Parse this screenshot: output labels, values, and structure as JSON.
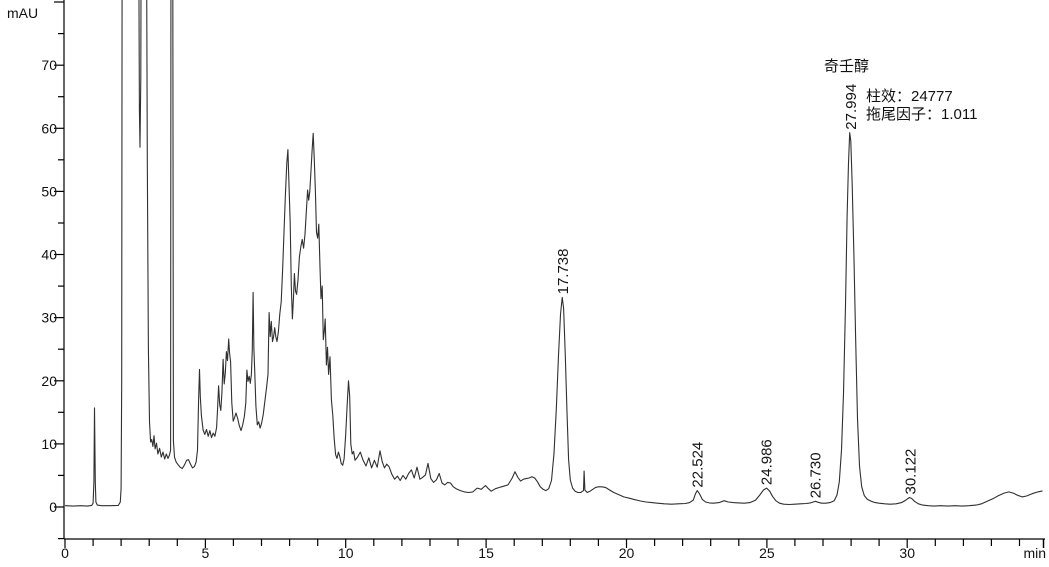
{
  "chart_data": {
    "type": "line",
    "description": "HPLC chromatogram trace",
    "y_unit": "mAU",
    "x_unit": "min",
    "xlim": [
      0,
      34.85
    ],
    "ylim": [
      -5.1,
      80.4
    ],
    "grid": false,
    "x_major_ticks": [
      0,
      5,
      10,
      15,
      20,
      25,
      30
    ],
    "x_minor_step": 1,
    "x_tick_max": 34,
    "y_major_ticks": [
      0,
      10,
      20,
      30,
      40,
      50,
      60,
      70
    ],
    "y_minor_step": 5,
    "y_tick_min": -5,
    "y_tick_max": 80,
    "trace_color": "#303030",
    "axis_color": "#000000",
    "off_scale_value": 120,
    "annotation": {
      "title": "奇壬醇",
      "line1": "柱效：24777",
      "line2": "拖尾因子：1.011"
    },
    "peaks": [
      {
        "label": "17.738",
        "rt": 17.738,
        "apex_mAU": 33.2
      },
      {
        "label": "22.524",
        "rt": 22.524,
        "apex_mAU": 2.6
      },
      {
        "label": "24.986",
        "rt": 24.986,
        "apex_mAU": 3.0
      },
      {
        "label": "26.730",
        "rt": 26.73,
        "apex_mAU": 0.9
      },
      {
        "label": "27.994",
        "rt": 27.994,
        "apex_mAU": 59.3,
        "compound": "奇壬醇",
        "column_efficiency": 24777,
        "tailing_factor": 1.011
      },
      {
        "label": "30.122",
        "rt": 30.122,
        "apex_mAU": 1.5
      }
    ],
    "trace": [
      [
        0.0,
        0.2
      ],
      [
        0.3,
        0.15
      ],
      [
        0.55,
        0.2
      ],
      [
        0.8,
        0.15
      ],
      [
        0.95,
        0.25
      ],
      [
        1.0,
        0.6
      ],
      [
        1.03,
        4
      ],
      [
        1.05,
        15.7
      ],
      [
        1.08,
        4
      ],
      [
        1.1,
        0.8
      ],
      [
        1.15,
        0.3
      ],
      [
        1.3,
        0.2
      ],
      [
        1.6,
        0.2
      ],
      [
        1.9,
        0.25
      ],
      [
        1.97,
        0.8
      ],
      [
        2.0,
        3
      ],
      [
        2.02,
        20
      ],
      [
        2.04,
        120
      ],
      [
        2.6,
        120
      ],
      [
        2.65,
        63
      ],
      [
        2.67,
        57
      ],
      [
        2.7,
        68
      ],
      [
        2.73,
        120
      ],
      [
        2.88,
        120
      ],
      [
        2.93,
        55
      ],
      [
        2.97,
        25
      ],
      [
        3.01,
        13.5
      ],
      [
        3.05,
        10.3
      ],
      [
        3.09,
        10.7
      ],
      [
        3.13,
        9.6
      ],
      [
        3.17,
        11.3
      ],
      [
        3.21,
        9.2
      ],
      [
        3.26,
        10.1
      ],
      [
        3.31,
        8.4
      ],
      [
        3.37,
        9.3
      ],
      [
        3.43,
        7.9
      ],
      [
        3.49,
        8.7
      ],
      [
        3.55,
        7.6
      ],
      [
        3.61,
        8.4
      ],
      [
        3.67,
        7.7
      ],
      [
        3.72,
        8.2
      ],
      [
        3.76,
        9.0
      ],
      [
        3.78,
        120
      ],
      [
        3.83,
        120
      ],
      [
        3.86,
        10.5
      ],
      [
        3.9,
        7.9
      ],
      [
        3.96,
        7.1
      ],
      [
        4.03,
        6.7
      ],
      [
        4.1,
        6.3
      ],
      [
        4.18,
        6.1
      ],
      [
        4.26,
        6.7
      ],
      [
        4.33,
        7.4
      ],
      [
        4.4,
        7.5
      ],
      [
        4.47,
        6.8
      ],
      [
        4.54,
        6.2
      ],
      [
        4.61,
        6.4
      ],
      [
        4.67,
        7.1
      ],
      [
        4.72,
        9.0
      ],
      [
        4.76,
        17
      ],
      [
        4.79,
        21.8
      ],
      [
        4.82,
        17.5
      ],
      [
        4.86,
        14.5
      ],
      [
        4.92,
        12.2
      ],
      [
        4.98,
        11.5
      ],
      [
        5.04,
        12.3
      ],
      [
        5.1,
        11.2
      ],
      [
        5.16,
        12.1
      ],
      [
        5.22,
        11.0
      ],
      [
        5.28,
        11.7
      ],
      [
        5.34,
        11.2
      ],
      [
        5.4,
        12.6
      ],
      [
        5.44,
        16
      ],
      [
        5.47,
        19.2
      ],
      [
        5.51,
        16.2
      ],
      [
        5.55,
        15.3
      ],
      [
        5.59,
        18
      ],
      [
        5.63,
        23.4
      ],
      [
        5.67,
        19.5
      ],
      [
        5.71,
        21.2
      ],
      [
        5.75,
        24.6
      ],
      [
        5.79,
        23.2
      ],
      [
        5.83,
        26.6
      ],
      [
        5.86,
        24.5
      ],
      [
        5.9,
        23
      ],
      [
        5.94,
        16.5
      ],
      [
        5.99,
        13.6
      ],
      [
        6.04,
        14.2
      ],
      [
        6.09,
        14.9
      ],
      [
        6.15,
        14.0
      ],
      [
        6.21,
        12.9
      ],
      [
        6.27,
        12.1
      ],
      [
        6.33,
        13.0
      ],
      [
        6.39,
        14.4
      ],
      [
        6.44,
        16.5
      ],
      [
        6.48,
        21.7
      ],
      [
        6.52,
        19.9
      ],
      [
        6.56,
        20.7
      ],
      [
        6.6,
        19.6
      ],
      [
        6.64,
        21
      ],
      [
        6.67,
        25
      ],
      [
        6.7,
        34
      ],
      [
        6.73,
        25
      ],
      [
        6.76,
        21.2
      ],
      [
        6.8,
        16
      ],
      [
        6.85,
        13.0
      ],
      [
        6.9,
        13.5
      ],
      [
        6.95,
        12.5
      ],
      [
        7.0,
        13.2
      ],
      [
        7.06,
        14.6
      ],
      [
        7.12,
        16.8
      ],
      [
        7.18,
        19
      ],
      [
        7.23,
        21
      ],
      [
        7.27,
        30.8
      ],
      [
        7.31,
        27
      ],
      [
        7.35,
        29.4
      ],
      [
        7.39,
        26.2
      ],
      [
        7.43,
        27
      ],
      [
        7.47,
        28.4
      ],
      [
        7.51,
        27
      ],
      [
        7.55,
        26.2
      ],
      [
        7.6,
        27.8
      ],
      [
        7.65,
        30.6
      ],
      [
        7.7,
        32.5
      ],
      [
        7.75,
        37.5
      ],
      [
        7.8,
        43.5
      ],
      [
        7.85,
        49.5
      ],
      [
        7.9,
        54.5
      ],
      [
        7.94,
        56.6
      ],
      [
        7.98,
        51
      ],
      [
        8.02,
        45
      ],
      [
        8.06,
        35
      ],
      [
        8.1,
        29.8
      ],
      [
        8.14,
        33.2
      ],
      [
        8.17,
        37
      ],
      [
        8.21,
        34.2
      ],
      [
        8.25,
        33.7
      ],
      [
        8.3,
        36
      ],
      [
        8.35,
        39.6
      ],
      [
        8.4,
        41.2
      ],
      [
        8.45,
        42.4
      ],
      [
        8.5,
        41
      ],
      [
        8.55,
        43.2
      ],
      [
        8.6,
        47
      ],
      [
        8.64,
        50.2
      ],
      [
        8.68,
        48.6
      ],
      [
        8.72,
        50
      ],
      [
        8.76,
        53
      ],
      [
        8.8,
        56.5
      ],
      [
        8.84,
        59.2
      ],
      [
        8.88,
        55
      ],
      [
        8.92,
        50
      ],
      [
        8.96,
        43.5
      ],
      [
        9.0,
        42.6
      ],
      [
        9.04,
        44.8
      ],
      [
        9.08,
        38.5
      ],
      [
        9.12,
        33
      ],
      [
        9.16,
        35
      ],
      [
        9.2,
        26.5
      ],
      [
        9.24,
        28
      ],
      [
        9.27,
        29.8
      ],
      [
        9.31,
        22.5
      ],
      [
        9.35,
        25.3
      ],
      [
        9.39,
        21
      ],
      [
        9.44,
        23.8
      ],
      [
        9.49,
        17
      ],
      [
        9.54,
        14.5
      ],
      [
        9.59,
        10.8
      ],
      [
        9.64,
        8.3
      ],
      [
        9.69,
        7.7
      ],
      [
        9.74,
        8.7
      ],
      [
        9.79,
        8.0
      ],
      [
        9.84,
        6.9
      ],
      [
        9.89,
        6.6
      ],
      [
        9.94,
        7.6
      ],
      [
        10.0,
        11.5
      ],
      [
        10.05,
        16
      ],
      [
        10.1,
        20.0
      ],
      [
        10.14,
        17.5
      ],
      [
        10.18,
        10
      ],
      [
        10.23,
        8.4
      ],
      [
        10.28,
        8.8
      ],
      [
        10.33,
        7.4
      ],
      [
        10.42,
        7.9
      ],
      [
        10.52,
        8.7
      ],
      [
        10.62,
        7.4
      ],
      [
        10.72,
        6.5
      ],
      [
        10.82,
        7.8
      ],
      [
        10.92,
        6.2
      ],
      [
        11.02,
        7.4
      ],
      [
        11.12,
        6.3
      ],
      [
        11.22,
        8.9
      ],
      [
        11.3,
        7.2
      ],
      [
        11.38,
        6.2
      ],
      [
        11.46,
        6.8
      ],
      [
        11.54,
        6.4
      ],
      [
        11.64,
        5.2
      ],
      [
        11.74,
        4.4
      ],
      [
        11.84,
        4.9
      ],
      [
        11.94,
        4.2
      ],
      [
        12.04,
        5.0
      ],
      [
        12.14,
        4.4
      ],
      [
        12.24,
        5.3
      ],
      [
        12.34,
        5.9
      ],
      [
        12.44,
        4.6
      ],
      [
        12.54,
        6.3
      ],
      [
        12.64,
        4.4
      ],
      [
        12.74,
        4.7
      ],
      [
        12.84,
        5.1
      ],
      [
        12.93,
        6.9
      ],
      [
        13.03,
        4.5
      ],
      [
        13.13,
        3.9
      ],
      [
        13.23,
        4.3
      ],
      [
        13.33,
        5.3
      ],
      [
        13.43,
        3.8
      ],
      [
        13.53,
        3.5
      ],
      [
        13.63,
        3.9
      ],
      [
        13.73,
        3.8
      ],
      [
        13.83,
        3.2
      ],
      [
        13.93,
        2.9
      ],
      [
        14.08,
        2.6
      ],
      [
        14.23,
        2.4
      ],
      [
        14.38,
        2.3
      ],
      [
        14.53,
        2.4
      ],
      [
        14.68,
        3.0
      ],
      [
        14.83,
        2.8
      ],
      [
        14.98,
        3.4
      ],
      [
        15.08,
        2.9
      ],
      [
        15.18,
        2.5
      ],
      [
        15.33,
        2.9
      ],
      [
        15.48,
        3.1
      ],
      [
        15.63,
        3.3
      ],
      [
        15.78,
        3.5
      ],
      [
        15.93,
        4.6
      ],
      [
        16.03,
        5.6
      ],
      [
        16.13,
        4.7
      ],
      [
        16.23,
        4.1
      ],
      [
        16.33,
        4.4
      ],
      [
        16.43,
        4.5
      ],
      [
        16.53,
        4.6
      ],
      [
        16.63,
        4.8
      ],
      [
        16.73,
        4.6
      ],
      [
        16.83,
        4.0
      ],
      [
        16.93,
        3.2
      ],
      [
        17.03,
        2.8
      ],
      [
        17.13,
        2.6
      ],
      [
        17.23,
        2.9
      ],
      [
        17.33,
        4.2
      ],
      [
        17.42,
        8.5
      ],
      [
        17.5,
        15.5
      ],
      [
        17.58,
        24
      ],
      [
        17.65,
        30.5
      ],
      [
        17.71,
        33.2
      ],
      [
        17.76,
        31.5
      ],
      [
        17.82,
        24
      ],
      [
        17.88,
        15
      ],
      [
        17.94,
        7.5
      ],
      [
        18.0,
        4.3
      ],
      [
        18.08,
        3.0
      ],
      [
        18.17,
        2.5
      ],
      [
        18.27,
        2.3
      ],
      [
        18.37,
        2.3
      ],
      [
        18.44,
        2.5
      ],
      [
        18.47,
        2.6
      ],
      [
        18.49,
        5.7
      ],
      [
        18.52,
        2.7
      ],
      [
        18.6,
        2.3
      ],
      [
        18.7,
        2.5
      ],
      [
        18.8,
        2.8
      ],
      [
        18.9,
        3.1
      ],
      [
        19.0,
        3.2
      ],
      [
        19.12,
        3.2
      ],
      [
        19.25,
        3.1
      ],
      [
        19.4,
        2.7
      ],
      [
        19.55,
        2.3
      ],
      [
        19.7,
        2.0
      ],
      [
        19.9,
        1.6
      ],
      [
        20.1,
        1.4
      ],
      [
        20.3,
        1.15
      ],
      [
        20.5,
        0.95
      ],
      [
        20.7,
        0.8
      ],
      [
        20.9,
        0.7
      ],
      [
        21.1,
        0.6
      ],
      [
        21.35,
        0.5
      ],
      [
        21.6,
        0.45
      ],
      [
        21.85,
        0.5
      ],
      [
        22.1,
        0.55
      ],
      [
        22.25,
        0.7
      ],
      [
        22.38,
        1.1
      ],
      [
        22.46,
        2.1
      ],
      [
        22.52,
        2.6
      ],
      [
        22.6,
        2.1
      ],
      [
        22.7,
        1.2
      ],
      [
        22.82,
        0.8
      ],
      [
        22.95,
        0.65
      ],
      [
        23.1,
        0.6
      ],
      [
        23.3,
        0.7
      ],
      [
        23.48,
        1.0
      ],
      [
        23.62,
        0.8
      ],
      [
        23.8,
        0.7
      ],
      [
        24.0,
        0.65
      ],
      [
        24.2,
        0.6
      ],
      [
        24.4,
        0.7
      ],
      [
        24.6,
        1.1
      ],
      [
        24.75,
        1.9
      ],
      [
        24.88,
        2.7
      ],
      [
        24.99,
        3.0
      ],
      [
        25.1,
        2.5
      ],
      [
        25.2,
        1.7
      ],
      [
        25.32,
        1.0
      ],
      [
        25.45,
        0.6
      ],
      [
        25.6,
        0.45
      ],
      [
        25.8,
        0.4
      ],
      [
        26.0,
        0.45
      ],
      [
        26.2,
        0.5
      ],
      [
        26.4,
        0.55
      ],
      [
        26.55,
        0.65
      ],
      [
        26.65,
        0.8
      ],
      [
        26.73,
        0.9
      ],
      [
        26.83,
        0.75
      ],
      [
        26.95,
        0.6
      ],
      [
        27.1,
        0.6
      ],
      [
        27.25,
        0.7
      ],
      [
        27.4,
        1.0
      ],
      [
        27.5,
        1.9
      ],
      [
        27.58,
        4
      ],
      [
        27.66,
        9
      ],
      [
        27.73,
        18
      ],
      [
        27.8,
        32
      ],
      [
        27.86,
        46
      ],
      [
        27.91,
        54.5
      ],
      [
        27.95,
        59.3
      ],
      [
        27.99,
        58
      ],
      [
        28.04,
        51
      ],
      [
        28.1,
        40
      ],
      [
        28.16,
        27
      ],
      [
        28.23,
        14
      ],
      [
        28.3,
        6.5
      ],
      [
        28.38,
        3.2
      ],
      [
        28.47,
        1.8
      ],
      [
        28.58,
        1.2
      ],
      [
        28.72,
        0.9
      ],
      [
        28.86,
        0.7
      ],
      [
        29.0,
        0.6
      ],
      [
        29.2,
        0.5
      ],
      [
        29.4,
        0.45
      ],
      [
        29.6,
        0.5
      ],
      [
        29.8,
        0.7
      ],
      [
        29.95,
        1.1
      ],
      [
        30.08,
        1.5
      ],
      [
        30.16,
        1.35
      ],
      [
        30.26,
        0.9
      ],
      [
        30.4,
        0.5
      ],
      [
        30.55,
        0.3
      ],
      [
        30.75,
        0.2
      ],
      [
        30.95,
        0.15
      ],
      [
        31.2,
        0.2
      ],
      [
        31.45,
        0.15
      ],
      [
        31.7,
        0.2
      ],
      [
        31.95,
        0.15
      ],
      [
        32.2,
        0.2
      ],
      [
        32.45,
        0.3
      ],
      [
        32.65,
        0.5
      ],
      [
        32.85,
        0.9
      ],
      [
        33.05,
        1.3
      ],
      [
        33.25,
        1.8
      ],
      [
        33.45,
        2.2
      ],
      [
        33.62,
        2.4
      ],
      [
        33.78,
        2.2
      ],
      [
        33.93,
        1.85
      ],
      [
        34.1,
        1.6
      ],
      [
        34.25,
        1.75
      ],
      [
        34.45,
        2.1
      ],
      [
        34.65,
        2.4
      ],
      [
        34.82,
        2.55
      ]
    ]
  }
}
